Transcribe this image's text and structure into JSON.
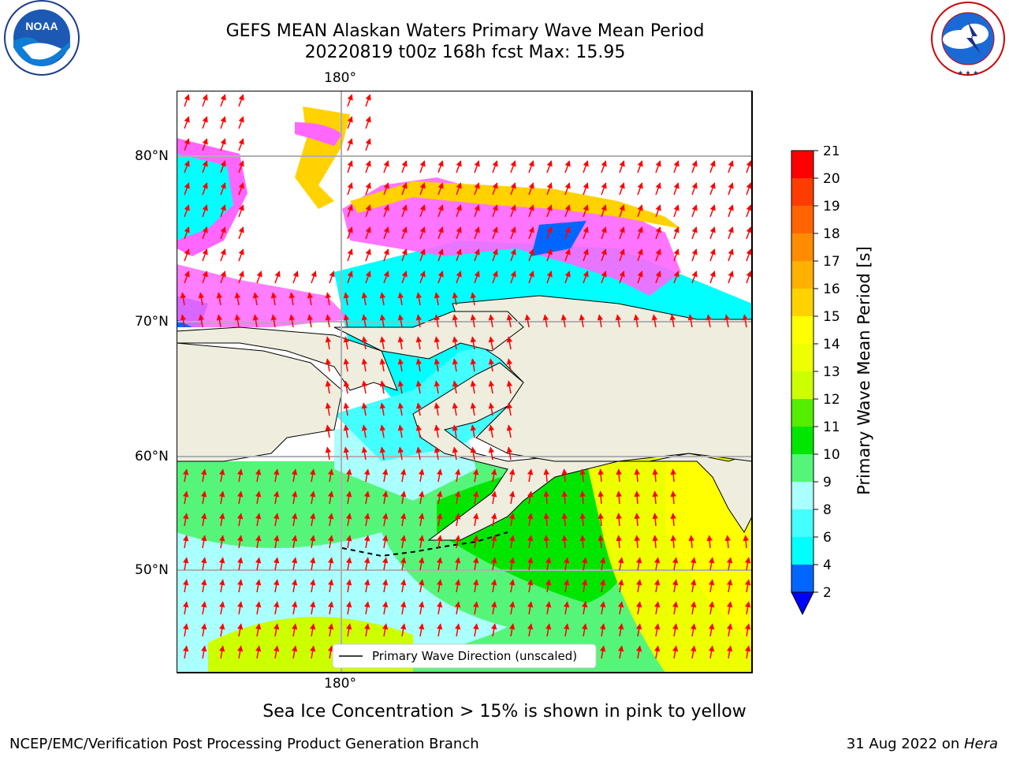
{
  "header": {
    "title_line1": "GEFS MEAN Alaskan Waters Primary Wave Mean Period",
    "title_line2": "20220819 t00z 168h fcst   Max: 15.95"
  },
  "logos": {
    "noaa_text": "NOAA",
    "noaa_ring": "NATIONAL OCEANIC AND ATMOSPHERIC ADMINISTRATION · U.S. DEPARTMENT OF COMMERCE",
    "nws_ring": "NATIONAL WEATHER SERVICE"
  },
  "map": {
    "lon_labels": [
      "180°",
      "180°"
    ],
    "lat_labels": [
      "80°N",
      "70°N",
      "60°N",
      "50°N"
    ],
    "legend_label": "Primary Wave Direction (unscaled)",
    "colors": {
      "land": "#efedde",
      "arrow": "#ff0000",
      "grid": "#b0b0b0"
    }
  },
  "colorbar": {
    "title": "Primary Wave Mean Period [s]",
    "ticks": [
      "2",
      "4",
      "6",
      "8",
      "9",
      "10",
      "11",
      "12",
      "13",
      "14",
      "15",
      "16",
      "17",
      "18",
      "19",
      "20",
      "21"
    ],
    "colors": [
      "#0066ff",
      "#00ffff",
      "#44ffff",
      "#aaffff",
      "#55f57a",
      "#00e600",
      "#55ee00",
      "#ccff00",
      "#eeff00",
      "#ffff00",
      "#ffd200",
      "#ffb000",
      "#ff8c00",
      "#ff6400",
      "#ff3c00",
      "#ff0000"
    ],
    "under_color": "#0000ff"
  },
  "note": "Sea Ice Concentration > 15% is shown in pink to yellow",
  "footer": {
    "left": "NCEP/EMC/Verification Post Processing Product Generation Branch",
    "date": "31 Aug 2022 on ",
    "host": "Hera"
  }
}
